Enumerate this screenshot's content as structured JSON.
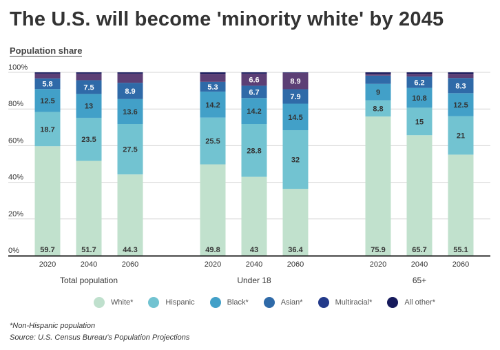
{
  "title": "The U.S. will become 'minority white' by 2045",
  "subtitle": "Population share",
  "footnote": "*Non-Hispanic population",
  "source": "Source: U.S. Census Bureau's Population Projections",
  "chart_data": {
    "type": "bar",
    "stacked": true,
    "ylabel": "Population share",
    "ylim": [
      0,
      100
    ],
    "yticks": [
      "0%",
      "20%",
      "40%",
      "60%",
      "80%",
      "100%"
    ],
    "grid": true,
    "legend_position": "bottom",
    "groups": [
      "Total population",
      "Under 18",
      "65+"
    ],
    "categories": [
      "2020",
      "2040",
      "2060"
    ],
    "legend_colors": [
      "#bfe0cd",
      "#72c3d1",
      "#42a0c8",
      "#2f6aa8",
      "#233a8a",
      "#161a5c"
    ],
    "series": [
      {
        "name": "White*",
        "color": "#c1e1cd",
        "label_color": "#333333",
        "values": [
          [
            59.7,
            51.7,
            44.3
          ],
          [
            49.8,
            43,
            36.4
          ],
          [
            75.9,
            65.7,
            55.1
          ]
        ],
        "labeled": [
          [
            true,
            true,
            true
          ],
          [
            true,
            true,
            true
          ],
          [
            true,
            true,
            true
          ]
        ]
      },
      {
        "name": "Hispanic",
        "color": "#72c3d1",
        "label_color": "#333333",
        "values": [
          [
            18.7,
            23.5,
            27.5
          ],
          [
            25.5,
            28.8,
            32
          ],
          [
            8.8,
            15,
            21
          ]
        ],
        "labeled": [
          [
            true,
            true,
            true
          ],
          [
            true,
            true,
            true
          ],
          [
            true,
            true,
            true
          ]
        ]
      },
      {
        "name": "Black*",
        "color": "#42a0c8",
        "label_color": "#333333",
        "values": [
          [
            12.5,
            13,
            13.6
          ],
          [
            14.2,
            14.2,
            14.5
          ],
          [
            9,
            10.8,
            12.5
          ]
        ],
        "labeled": [
          [
            true,
            true,
            true
          ],
          [
            true,
            true,
            true
          ],
          [
            true,
            true,
            true
          ]
        ]
      },
      {
        "name": "Asian*",
        "color": "#2f6aa8",
        "label_color": "#ffffff",
        "values": [
          [
            5.8,
            7.5,
            8.9
          ],
          [
            5.3,
            6.7,
            7.9
          ],
          [
            4.5,
            6.2,
            8.3
          ]
        ],
        "labeled": [
          [
            true,
            true,
            true
          ],
          [
            true,
            true,
            true
          ],
          [
            false,
            true,
            true
          ]
        ]
      },
      {
        "name": "Multiracial*",
        "color": "#5c3f75",
        "label_color": "#ffffff",
        "values": [
          [
            2.6,
            3.6,
            5.0
          ],
          [
            4.4,
            6.6,
            8.9
          ],
          [
            1.0,
            1.5,
            2.3
          ]
        ],
        "labeled": [
          [
            false,
            false,
            false
          ],
          [
            false,
            true,
            true
          ],
          [
            false,
            false,
            false
          ]
        ]
      },
      {
        "name": "All other*",
        "color": "#161a5c",
        "label_color": "#ffffff",
        "values": [
          [
            0.7,
            0.7,
            0.7
          ],
          [
            0.8,
            0.7,
            0.3
          ],
          [
            0.8,
            0.8,
            0.8
          ]
        ],
        "labeled": [
          [
            false,
            false,
            false
          ],
          [
            false,
            false,
            false
          ],
          [
            false,
            false,
            false
          ]
        ]
      }
    ]
  }
}
